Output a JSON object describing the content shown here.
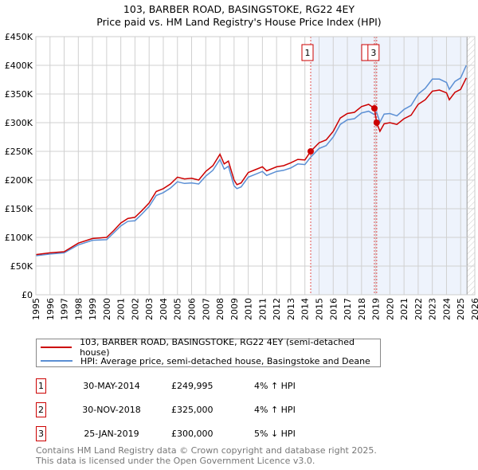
{
  "title": "103, BARBER ROAD, BASINGSTOKE, RG22 4EY",
  "subtitle": "Price paid vs. HM Land Registry's House Price Index (HPI)",
  "chart_data": {
    "type": "line",
    "title": "103, BARBER ROAD, BASINGSTOKE, RG22 4EY",
    "subtitle": "Price paid vs. HM Land Registry's House Price Index (HPI)",
    "xlim": [
      1995,
      2026
    ],
    "ylim": [
      0,
      450000
    ],
    "x_ticks": [
      "1995",
      "1996",
      "1997",
      "1998",
      "1999",
      "2000",
      "2001",
      "2002",
      "2003",
      "2004",
      "2005",
      "2006",
      "2007",
      "2008",
      "2009",
      "2010",
      "2011",
      "2012",
      "2013",
      "2014",
      "2015",
      "2016",
      "2017",
      "2018",
      "2019",
      "2020",
      "2021",
      "2022",
      "2023",
      "2024",
      "2025",
      "2026"
    ],
    "y_ticks": [
      {
        "value": 0,
        "label": "£0"
      },
      {
        "value": 50000,
        "label": "£50K"
      },
      {
        "value": 100000,
        "label": "£100K"
      },
      {
        "value": 150000,
        "label": "£150K"
      },
      {
        "value": 200000,
        "label": "£200K"
      },
      {
        "value": 250000,
        "label": "£250K"
      },
      {
        "value": 300000,
        "label": "£300K"
      },
      {
        "value": 350000,
        "label": "£350K"
      },
      {
        "value": 400000,
        "label": "£400K"
      },
      {
        "value": 450000,
        "label": "£450K"
      }
    ],
    "grid": true,
    "shaded_from": 2014.41,
    "forecast_hatch_from": 2025.45,
    "x": [
      1995,
      1996,
      1997,
      1998,
      1999,
      2000,
      2000.5,
      2001,
      2001.5,
      2002,
      2002.5,
      2003,
      2003.5,
      2004,
      2004.5,
      2005,
      2005.5,
      2006,
      2006.5,
      2007,
      2007.5,
      2008,
      2008.3,
      2008.6,
      2009,
      2009.2,
      2009.5,
      2010,
      2010.5,
      2011,
      2011.3,
      2012,
      2012.5,
      2013,
      2013.5,
      2014,
      2014.41,
      2015,
      2015.5,
      2016,
      2016.5,
      2017,
      2017.5,
      2018,
      2018.5,
      2018.91,
      2019.07,
      2019.3,
      2019.6,
      2020,
      2020.5,
      2021,
      2021.5,
      2022,
      2022.5,
      2023,
      2023.5,
      2024,
      2024.2,
      2024.6,
      2025,
      2025.4
    ],
    "series": [
      {
        "name": "103, BARBER ROAD, BASINGSTOKE, RG22 4EY (semi-detached house)",
        "color": "#cc0000",
        "values": [
          70,
          73,
          75,
          90,
          98,
          100,
          112,
          125,
          133,
          135,
          147,
          160,
          180,
          185,
          193,
          205,
          202,
          203,
          200,
          215,
          225,
          245,
          228,
          233,
          200,
          192,
          195,
          213,
          218,
          223,
          216,
          223,
          225,
          230,
          236,
          235,
          250,
          265,
          270,
          285,
          308,
          316,
          318,
          328,
          332,
          325,
          300,
          285,
          298,
          300,
          297,
          307,
          313,
          332,
          340,
          355,
          357,
          352,
          340,
          353,
          358,
          378
        ]
      },
      {
        "name": "HPI: Average price, semi-detached house, Basingstoke and Deane",
        "color": "#5b8fd4",
        "values": [
          68,
          71,
          73,
          87,
          95,
          96,
          108,
          120,
          128,
          129,
          141,
          154,
          173,
          178,
          186,
          197,
          194,
          195,
          193,
          207,
          217,
          236,
          219,
          224,
          190,
          185,
          188,
          205,
          210,
          215,
          208,
          215,
          217,
          221,
          228,
          227,
          240,
          255,
          260,
          275,
          297,
          305,
          307,
          317,
          320,
          314,
          318,
          301,
          315,
          316,
          312,
          323,
          330,
          350,
          360,
          376,
          376,
          370,
          358,
          372,
          378,
          400
        ]
      }
    ],
    "value_unit": "thousands GBP",
    "sales": [
      {
        "id": "1",
        "x": 2014.41,
        "value": 249995
      },
      {
        "id": "2",
        "x": 2018.91,
        "value": 325000
      },
      {
        "id": "3",
        "x": 2019.07,
        "value": 300000
      }
    ]
  },
  "legend": [
    {
      "label": "103, BARBER ROAD, BASINGSTOKE, RG22 4EY (semi-detached house)",
      "color": "#cc0000"
    },
    {
      "label": "HPI: Average price, semi-detached house, Basingstoke and Deane",
      "color": "#5b8fd4"
    }
  ],
  "transactions": [
    {
      "num": "1",
      "date": "30-MAY-2014",
      "price": "£249,995",
      "hpi": "4% ↑ HPI"
    },
    {
      "num": "2",
      "date": "30-NOV-2018",
      "price": "£325,000",
      "hpi": "4% ↑ HPI"
    },
    {
      "num": "3",
      "date": "25-JAN-2019",
      "price": "£300,000",
      "hpi": "5% ↓ HPI"
    }
  ],
  "footer": {
    "line1": "Contains HM Land Registry data © Crown copyright and database right 2025.",
    "line2": "This data is licensed under the Open Government Licence v3.0."
  }
}
